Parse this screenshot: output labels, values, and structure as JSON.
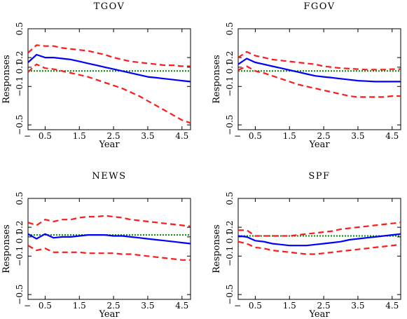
{
  "figure": {
    "colors": {
      "median": "#0000ff",
      "bands": "#ff1a1a",
      "zero": "#008800",
      "frame": "#000000"
    }
  },
  "chart_data": [
    {
      "type": "line",
      "title": "TGOV",
      "xlabel": "Year",
      "ylabel": "Responses",
      "xlim": [
        0,
        4.75
      ],
      "ylim": [
        -0.55,
        0.5
      ],
      "xticks": [
        0.5,
        1.5,
        2.5,
        3.5,
        4.5
      ],
      "xtick_labels": [
        "0.5",
        "1.5",
        "2.5",
        "3.5",
        "4.5"
      ],
      "yticks": [
        -0.5,
        -0.1,
        0.1,
        0.2,
        0.5
      ],
      "ytick_labels": [
        "−0.5",
        "−0.1",
        "0.1",
        "0.2",
        "0.5"
      ],
      "x": [
        0,
        0.25,
        0.5,
        0.75,
        1,
        1.25,
        1.5,
        1.75,
        2,
        2.25,
        2.5,
        2.75,
        3,
        3.25,
        3.5,
        3.75,
        4,
        4.25,
        4.5,
        4.75
      ],
      "series": [
        {
          "role": "median",
          "style": "solid",
          "values": [
            0.15,
            0.23,
            0.2,
            0.2,
            0.19,
            0.18,
            0.16,
            0.14,
            0.12,
            0.1,
            0.08,
            0.06,
            0.04,
            0.02,
            0.0,
            -0.01,
            -0.02,
            -0.03,
            -0.04,
            -0.05
          ]
        },
        {
          "role": "upper band",
          "style": "dashed",
          "values": [
            0.25,
            0.33,
            0.32,
            0.32,
            0.3,
            0.29,
            0.28,
            0.27,
            0.25,
            0.23,
            0.2,
            0.18,
            0.16,
            0.15,
            0.14,
            0.13,
            0.12,
            0.12,
            0.11,
            0.11
          ]
        },
        {
          "role": "lower band",
          "style": "dashed",
          "values": [
            0.05,
            0.13,
            0.09,
            0.08,
            0.06,
            0.04,
            0.02,
            0.0,
            -0.03,
            -0.06,
            -0.09,
            -0.12,
            -0.16,
            -0.2,
            -0.25,
            -0.3,
            -0.35,
            -0.4,
            -0.45,
            -0.48
          ]
        },
        {
          "role": "zero line",
          "style": "dotted",
          "values": [
            0.06,
            0.06,
            0.06,
            0.06,
            0.06,
            0.06,
            0.06,
            0.06,
            0.06,
            0.06,
            0.06,
            0.06,
            0.06,
            0.06,
            0.06,
            0.06,
            0.06,
            0.06,
            0.06,
            0.06
          ]
        }
      ]
    },
    {
      "type": "line",
      "title": "FGOV",
      "xlabel": "Year",
      "ylabel": "Responses",
      "xlim": [
        0,
        4.75
      ],
      "ylim": [
        -0.55,
        0.5
      ],
      "xticks": [
        0.5,
        1.5,
        2.5,
        3.5,
        4.5
      ],
      "xtick_labels": [
        "0.5",
        "1.5",
        "2.5",
        "3.5",
        "4.5"
      ],
      "yticks": [
        -0.5,
        -0.1,
        0.1,
        0.2,
        0.5
      ],
      "ytick_labels": [
        "−0.5",
        "−0.1",
        "0.1",
        "0.2",
        "0.5"
      ],
      "x": [
        0,
        0.25,
        0.5,
        0.75,
        1,
        1.25,
        1.5,
        1.75,
        2,
        2.25,
        2.5,
        2.75,
        3,
        3.25,
        3.5,
        3.75,
        4,
        4.25,
        4.5,
        4.75
      ],
      "series": [
        {
          "role": "median",
          "style": "solid",
          "values": [
            0.13,
            0.19,
            0.15,
            0.13,
            0.11,
            0.09,
            0.07,
            0.05,
            0.03,
            0.01,
            0.0,
            -0.01,
            -0.02,
            -0.03,
            -0.04,
            -0.045,
            -0.05,
            -0.05,
            -0.05,
            -0.05
          ]
        },
        {
          "role": "upper band",
          "style": "dashed",
          "values": [
            0.2,
            0.26,
            0.22,
            0.2,
            0.18,
            0.17,
            0.16,
            0.15,
            0.14,
            0.13,
            0.11,
            0.1,
            0.09,
            0.085,
            0.08,
            0.075,
            0.075,
            0.075,
            0.08,
            0.08
          ]
        },
        {
          "role": "lower band",
          "style": "dashed",
          "values": [
            0.07,
            0.11,
            0.06,
            0.04,
            0.01,
            -0.02,
            -0.05,
            -0.08,
            -0.1,
            -0.12,
            -0.14,
            -0.16,
            -0.18,
            -0.2,
            -0.21,
            -0.21,
            -0.21,
            -0.21,
            -0.2,
            -0.2
          ]
        },
        {
          "role": "zero line",
          "style": "dotted",
          "values": [
            0.06,
            0.06,
            0.06,
            0.06,
            0.06,
            0.06,
            0.06,
            0.06,
            0.06,
            0.06,
            0.06,
            0.06,
            0.06,
            0.06,
            0.06,
            0.06,
            0.06,
            0.06,
            0.06,
            0.06
          ]
        }
      ]
    },
    {
      "type": "line",
      "title": "NEWS",
      "xlabel": "Year",
      "ylabel": "Responses",
      "xlim": [
        0,
        4.75
      ],
      "ylim": [
        -0.55,
        0.5
      ],
      "xticks": [
        0.5,
        1.5,
        2.5,
        3.5,
        4.5
      ],
      "xtick_labels": [
        "0.5",
        "1.5",
        "2.5",
        "3.5",
        "4.5"
      ],
      "yticks": [
        -0.5,
        -0.1,
        0.1,
        0.2,
        0.5
      ],
      "ytick_labels": [
        "−0.5",
        "−0.1",
        "0.1",
        "0.2",
        "0.5"
      ],
      "x": [
        0,
        0.25,
        0.5,
        0.75,
        1,
        1.25,
        1.5,
        1.75,
        2,
        2.25,
        2.5,
        2.75,
        3,
        3.25,
        3.5,
        3.75,
        4,
        4.25,
        4.5,
        4.75
      ],
      "series": [
        {
          "role": "median",
          "style": "solid",
          "values": [
            0.13,
            0.08,
            0.13,
            0.09,
            0.1,
            0.1,
            0.11,
            0.12,
            0.12,
            0.12,
            0.11,
            0.11,
            0.1,
            0.09,
            0.08,
            0.07,
            0.06,
            0.05,
            0.04,
            0.03
          ]
        },
        {
          "role": "upper band",
          "style": "dashed",
          "values": [
            0.25,
            0.22,
            0.28,
            0.26,
            0.28,
            0.28,
            0.3,
            0.31,
            0.31,
            0.32,
            0.31,
            0.3,
            0.28,
            0.27,
            0.26,
            0.25,
            0.24,
            0.23,
            0.22,
            0.21
          ]
        },
        {
          "role": "lower band",
          "style": "dashed",
          "values": [
            0.01,
            -0.04,
            -0.02,
            -0.06,
            -0.06,
            -0.06,
            -0.06,
            -0.07,
            -0.07,
            -0.07,
            -0.07,
            -0.08,
            -0.08,
            -0.09,
            -0.1,
            -0.11,
            -0.12,
            -0.13,
            -0.14,
            -0.14
          ]
        },
        {
          "role": "zero line",
          "style": "dotted",
          "values": [
            0.12,
            0.12,
            0.12,
            0.12,
            0.12,
            0.12,
            0.12,
            0.12,
            0.12,
            0.12,
            0.12,
            0.12,
            0.12,
            0.12,
            0.12,
            0.12,
            0.12,
            0.12,
            0.12,
            0.12
          ]
        }
      ]
    },
    {
      "type": "line",
      "title": "SPF",
      "xlabel": "Year",
      "ylabel": "Responses",
      "xlim": [
        0,
        4.75
      ],
      "ylim": [
        -0.55,
        0.5
      ],
      "xticks": [
        0.5,
        1.5,
        2.5,
        3.5,
        4.5
      ],
      "xtick_labels": [
        "0.5",
        "1.5",
        "2.5",
        "3.5",
        "4.5"
      ],
      "yticks": [
        -0.5,
        -0.1,
        0.1,
        0.2,
        0.5
      ],
      "ytick_labels": [
        "−0.5",
        "−0.1",
        "0.1",
        "0.2",
        "0.5"
      ],
      "x": [
        0,
        0.25,
        0.5,
        0.75,
        1,
        1.25,
        1.5,
        1.75,
        2,
        2.25,
        2.5,
        2.75,
        3,
        3.25,
        3.5,
        3.75,
        4,
        4.25,
        4.5,
        4.75
      ],
      "series": [
        {
          "role": "median",
          "style": "solid",
          "values": [
            0.11,
            0.1,
            0.06,
            0.05,
            0.03,
            0.02,
            0.01,
            0.01,
            0.01,
            0.02,
            0.03,
            0.04,
            0.05,
            0.07,
            0.08,
            0.09,
            0.1,
            0.11,
            0.12,
            0.13
          ]
        },
        {
          "role": "upper band",
          "style": "dashed",
          "values": [
            0.17,
            0.17,
            0.11,
            0.11,
            0.11,
            0.11,
            0.11,
            0.12,
            0.13,
            0.14,
            0.15,
            0.16,
            0.18,
            0.19,
            0.2,
            0.21,
            0.22,
            0.23,
            0.24,
            0.25
          ]
        },
        {
          "role": "lower band",
          "style": "dashed",
          "values": [
            0.05,
            0.03,
            -0.01,
            -0.02,
            -0.04,
            -0.05,
            -0.06,
            -0.07,
            -0.08,
            -0.08,
            -0.07,
            -0.06,
            -0.05,
            -0.04,
            -0.03,
            -0.02,
            -0.01,
            0.0,
            0.01,
            0.02
          ]
        },
        {
          "role": "zero line",
          "style": "dotted",
          "values": [
            0.11,
            0.11,
            0.11,
            0.11,
            0.11,
            0.11,
            0.11,
            0.11,
            0.11,
            0.11,
            0.11,
            0.11,
            0.11,
            0.11,
            0.11,
            0.11,
            0.11,
            0.11,
            0.11,
            0.11
          ]
        }
      ]
    }
  ]
}
